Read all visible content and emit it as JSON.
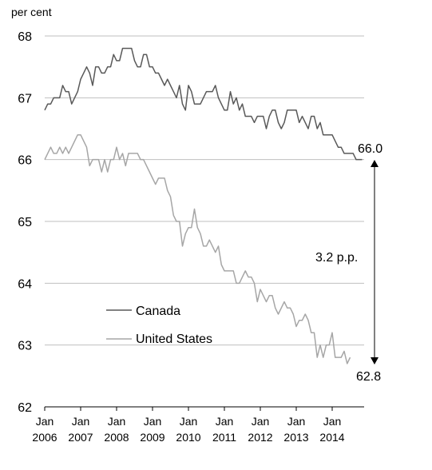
{
  "chart_data": {
    "type": "line",
    "ylabel": "per cent",
    "ylim": [
      62,
      68
    ],
    "yticks": [
      "62",
      "63",
      "64",
      "65",
      "66",
      "67",
      "68"
    ],
    "x_tick_labels": [
      {
        "month": "Jan",
        "year": "2006"
      },
      {
        "month": "Jan",
        "year": "2007"
      },
      {
        "month": "Jan",
        "year": "2008"
      },
      {
        "month": "Jan",
        "year": "2009"
      },
      {
        "month": "Jan",
        "year": "2010"
      },
      {
        "month": "Jan",
        "year": "2011"
      },
      {
        "month": "Jan",
        "year": "2012"
      },
      {
        "month": "Jan",
        "year": "2013"
      },
      {
        "month": "Jan",
        "year": "2014"
      }
    ],
    "x_start": "2006-01",
    "x_frequency": "monthly",
    "grid": "horizontal",
    "series": [
      {
        "name": "Canada",
        "color": "#595959",
        "values": [
          66.8,
          66.9,
          66.9,
          67.0,
          67.0,
          67.0,
          67.2,
          67.1,
          67.1,
          66.9,
          67.0,
          67.1,
          67.3,
          67.4,
          67.5,
          67.4,
          67.2,
          67.5,
          67.5,
          67.4,
          67.4,
          67.5,
          67.5,
          67.7,
          67.6,
          67.6,
          67.8,
          67.8,
          67.8,
          67.8,
          67.6,
          67.5,
          67.5,
          67.7,
          67.7,
          67.5,
          67.5,
          67.4,
          67.4,
          67.3,
          67.2,
          67.3,
          67.2,
          67.1,
          67.0,
          67.2,
          66.9,
          66.8,
          67.2,
          67.1,
          66.9,
          66.9,
          66.9,
          67.0,
          67.1,
          67.1,
          67.1,
          67.2,
          67.0,
          66.9,
          66.8,
          66.8,
          67.1,
          66.9,
          67.0,
          66.8,
          66.9,
          66.7,
          66.7,
          66.7,
          66.6,
          66.7,
          66.7,
          66.7,
          66.5,
          66.7,
          66.8,
          66.8,
          66.6,
          66.5,
          66.6,
          66.8,
          66.8,
          66.8,
          66.8,
          66.6,
          66.7,
          66.6,
          66.5,
          66.7,
          66.7,
          66.5,
          66.6,
          66.4,
          66.4,
          66.4,
          66.4,
          66.3,
          66.2,
          66.2,
          66.1,
          66.1,
          66.1,
          66.1,
          66.0,
          66.0,
          66.0
        ]
      },
      {
        "name": "United States",
        "color": "#a6a6a6",
        "values": [
          66.0,
          66.1,
          66.2,
          66.1,
          66.1,
          66.2,
          66.1,
          66.2,
          66.1,
          66.2,
          66.3,
          66.4,
          66.4,
          66.3,
          66.2,
          65.9,
          66.0,
          66.0,
          66.0,
          65.8,
          66.0,
          65.8,
          66.0,
          66.0,
          66.2,
          66.0,
          66.1,
          65.9,
          66.1,
          66.1,
          66.1,
          66.1,
          66.0,
          66.0,
          65.9,
          65.8,
          65.7,
          65.6,
          65.7,
          65.7,
          65.7,
          65.5,
          65.4,
          65.1,
          65.0,
          65.0,
          64.6,
          64.8,
          64.9,
          64.9,
          65.2,
          64.9,
          64.8,
          64.6,
          64.6,
          64.7,
          64.6,
          64.5,
          64.6,
          64.3,
          64.2,
          64.2,
          64.2,
          64.2,
          64.0,
          64.0,
          64.1,
          64.2,
          64.1,
          64.1,
          64.0,
          63.7,
          63.9,
          63.8,
          63.7,
          63.8,
          63.8,
          63.6,
          63.5,
          63.6,
          63.7,
          63.6,
          63.6,
          63.5,
          63.3,
          63.4,
          63.4,
          63.5,
          63.4,
          63.2,
          63.2,
          62.8,
          63.0,
          62.8,
          63.0,
          63.0,
          63.2,
          62.8,
          62.8,
          62.8,
          62.9,
          62.7,
          62.8
        ]
      }
    ],
    "annotations": {
      "canada_end": "66.0",
      "us_end": "62.8",
      "gap": "3.2 p.p."
    }
  }
}
